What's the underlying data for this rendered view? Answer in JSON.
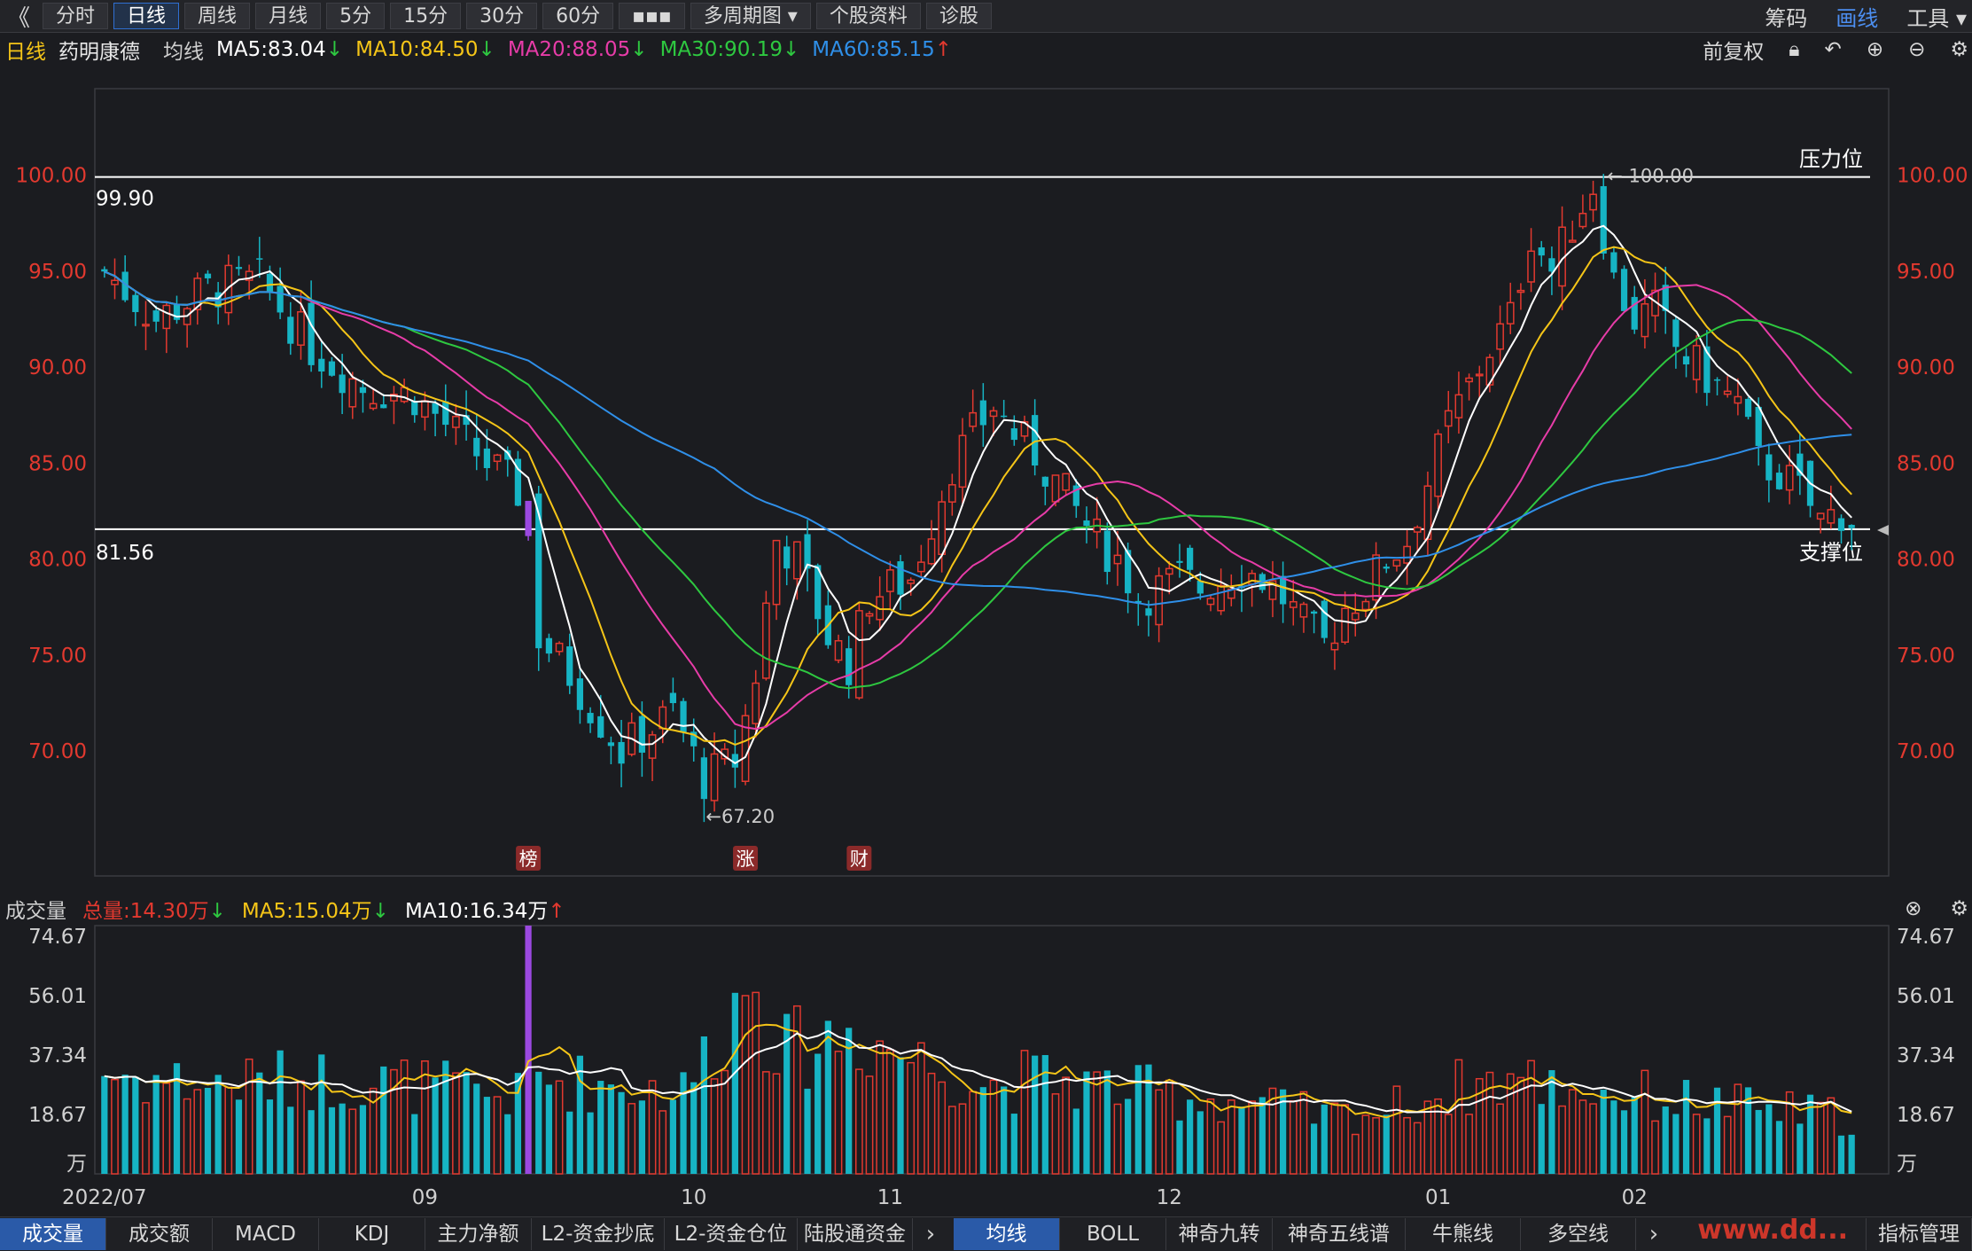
{
  "toolbar": {
    "back": "《",
    "periods": [
      "分时",
      "日线",
      "周线",
      "月线",
      "5分",
      "15分",
      "30分",
      "60分",
      "▪▪▪",
      "多周期图 ▾",
      "个股资料",
      "诊股"
    ],
    "active_period": 1,
    "right": [
      "筹码",
      "画线",
      "工具 ▾"
    ]
  },
  "ma_bar": {
    "period": "日线",
    "stock_name": "药明康德",
    "avg_label": "均线",
    "ma5": "MA5:83.04",
    "ma10": "MA10:84.50",
    "ma20": "MA20:88.05",
    "ma30": "MA30:90.19",
    "ma60": "MA60:85.15",
    "adjust": "前复权"
  },
  "vol_bar": {
    "title": "成交量",
    "total": "总量:14.30万",
    "ma5": "MA5:15.04万",
    "ma10": "MA10:16.34万"
  },
  "colors": {
    "up": "#e2392f",
    "down": "#16b4c4",
    "ma5": "#ffffff",
    "ma10": "#f5c518",
    "ma20": "#e73ca8",
    "ma30": "#2ec840",
    "ma60": "#2f8fe8",
    "special": "#9b49e0"
  },
  "chart_data": {
    "type": "candlestick",
    "price_ticks": [
      "100.00",
      "95.00",
      "90.00",
      "85.00",
      "80.00",
      "75.00",
      "70.00"
    ],
    "price_tick_values": [
      100,
      95,
      90,
      85,
      80,
      75,
      70
    ],
    "ylim": [
      63.5,
      104.5
    ],
    "lines": [
      {
        "value": 99.9,
        "label": "99.90",
        "tag": "压力位"
      },
      {
        "value": 81.56,
        "label": "81.56",
        "tag": "支撑位"
      }
    ],
    "annotations": {
      "high": "100.00",
      "low": "←67.20"
    },
    "high_value": 100,
    "low_value": 67.2,
    "markers": [
      {
        "index": 41,
        "text": "榜"
      },
      {
        "index": 62,
        "text": "涨"
      },
      {
        "index": 73,
        "text": "财"
      }
    ],
    "x_labels": [
      {
        "index": 0,
        "text": "2022/07"
      },
      {
        "index": 31,
        "text": "09"
      },
      {
        "index": 57,
        "text": "10"
      },
      {
        "index": 76,
        "text": "11"
      },
      {
        "index": 103,
        "text": "12"
      },
      {
        "index": 129,
        "text": "01"
      },
      {
        "index": 148,
        "text": "02"
      }
    ],
    "volume_ticks": [
      "74.67",
      "56.01",
      "37.34",
      "18.67",
      "万"
    ],
    "volume_tick_values": [
      74.67,
      56.01,
      37.34,
      18.67,
      0
    ],
    "volume_ylim": [
      0,
      78
    ],
    "candles": {
      "n": 170,
      "anchors": [
        [
          0,
          95
        ],
        [
          5,
          92.5
        ],
        [
          10,
          94
        ],
        [
          15,
          94.5
        ],
        [
          20,
          91
        ],
        [
          25,
          89
        ],
        [
          30,
          88.5
        ],
        [
          35,
          86
        ],
        [
          38,
          84.5
        ],
        [
          41,
          83
        ],
        [
          42,
          76
        ],
        [
          45,
          74
        ],
        [
          50,
          70
        ],
        [
          55,
          72
        ],
        [
          58,
          68.5
        ],
        [
          61,
          69.5
        ],
        [
          63,
          74
        ],
        [
          65,
          81
        ],
        [
          67,
          80
        ],
        [
          70,
          76
        ],
        [
          72,
          74.5
        ],
        [
          74,
          78
        ],
        [
          76,
          78.5
        ],
        [
          78,
          79
        ],
        [
          80,
          82
        ],
        [
          82,
          85
        ],
        [
          84,
          86.5
        ],
        [
          86,
          88
        ],
        [
          88,
          86.5
        ],
        [
          90,
          85.5
        ],
        [
          92,
          84
        ],
        [
          94,
          82.5
        ],
        [
          96,
          81
        ],
        [
          98,
          80
        ],
        [
          100,
          78
        ],
        [
          102,
          78.5
        ],
        [
          104,
          79
        ],
        [
          106,
          78.5
        ],
        [
          108,
          79
        ],
        [
          110,
          79.5
        ],
        [
          112,
          79
        ],
        [
          114,
          78
        ],
        [
          116,
          76.5
        ],
        [
          118,
          75.5
        ],
        [
          120,
          77.5
        ],
        [
          122,
          78.5
        ],
        [
          124,
          80
        ],
        [
          126,
          81
        ],
        [
          128,
          84
        ],
        [
          130,
          87
        ],
        [
          132,
          89
        ],
        [
          134,
          91
        ],
        [
          136,
          92.5
        ],
        [
          138,
          97
        ],
        [
          140,
          95
        ],
        [
          142,
          97.5
        ],
        [
          144,
          99.5
        ],
        [
          146,
          94.5
        ],
        [
          148,
          92.5
        ],
        [
          150,
          93
        ],
        [
          152,
          91
        ],
        [
          154,
          90
        ],
        [
          156,
          89
        ],
        [
          158,
          88
        ],
        [
          160,
          85
        ],
        [
          162,
          84.5
        ],
        [
          164,
          83.5
        ],
        [
          166,
          82
        ],
        [
          168,
          82.5
        ],
        [
          169,
          82
        ]
      ],
      "vol_anchors": [
        [
          0,
          32
        ],
        [
          10,
          28
        ],
        [
          20,
          30
        ],
        [
          30,
          28
        ],
        [
          40,
          24
        ],
        [
          41,
          78
        ],
        [
          42,
          30
        ],
        [
          50,
          28
        ],
        [
          56,
          26
        ],
        [
          62,
          58
        ],
        [
          63,
          55
        ],
        [
          66,
          38
        ],
        [
          72,
          45
        ],
        [
          76,
          40
        ],
        [
          80,
          34
        ],
        [
          86,
          28
        ],
        [
          90,
          30
        ],
        [
          96,
          28
        ],
        [
          100,
          26
        ],
        [
          106,
          24
        ],
        [
          112,
          22
        ],
        [
          118,
          18
        ],
        [
          124,
          20
        ],
        [
          128,
          24
        ],
        [
          132,
          28
        ],
        [
          136,
          30
        ],
        [
          140,
          28
        ],
        [
          144,
          26
        ],
        [
          150,
          24
        ],
        [
          156,
          22
        ],
        [
          162,
          20
        ],
        [
          169,
          18
        ]
      ],
      "seed": 7
    }
  }
}
